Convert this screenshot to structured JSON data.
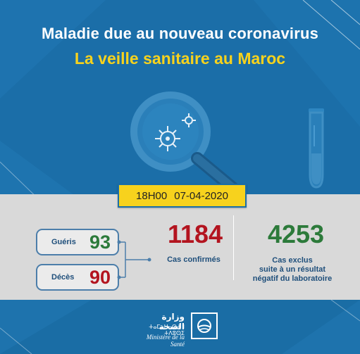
{
  "header": {
    "title_line1": "Maladie due au nouveau coronavirus",
    "title_line2": "La veille sanitaire au Maroc"
  },
  "timestamp": {
    "time": "18H00",
    "date": "07-04-2020"
  },
  "stats": {
    "recovered": {
      "label": "Guéris",
      "value": "93"
    },
    "deaths": {
      "label": "Décès",
      "value": "90"
    },
    "confirmed": {
      "value": "1184",
      "label": "Cas confirmés"
    },
    "excluded": {
      "value": "4253",
      "label_line1": "Cas exclus",
      "label_line2": "suite à un résultat",
      "label_line3": "négatif du laboratoire"
    }
  },
  "footer": {
    "ministry_ar": "وزارة الصحة",
    "ministry_amazigh": "ⵜⴰⵎⴰⵡⴰⵙⵜ ⵏ ⵜⴷⵓⵙⵉ",
    "ministry_fr": "Ministère de la Santé"
  },
  "colors": {
    "background_blue": "#1b6ea8",
    "accent_yellow": "#f7d21d",
    "positive_green": "#2c7a3a",
    "alert_red": "#b3141f"
  }
}
